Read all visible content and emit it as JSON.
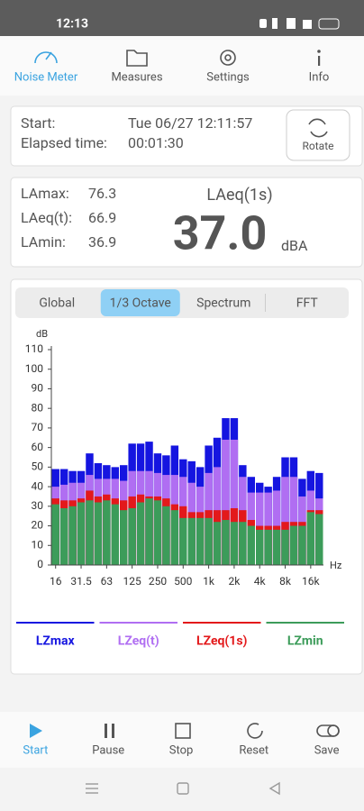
{
  "status_bar": {
    "time": "12:13"
  },
  "tabs": [
    {
      "label": "Noise Meter",
      "active": true
    },
    {
      "label": "Measures",
      "active": false
    },
    {
      "label": "Settings",
      "active": false
    },
    {
      "label": "Info",
      "active": false
    }
  ],
  "session": {
    "start_label": "Start:",
    "start_value": "Tue 06/27 12:11:57",
    "elapsed_label": "Elapsed time:",
    "elapsed_value": "00:01:30",
    "button": "Rotate"
  },
  "levels": {
    "rows": [
      {
        "label": "LAmax:",
        "value": "76.3"
      },
      {
        "label": "LAeq(t):",
        "value": "66.9"
      },
      {
        "label": "LAmin:",
        "value": "36.9"
      }
    ],
    "main_label": "LAeq(1s)",
    "main_value": "37.0",
    "unit": "dBA"
  },
  "view_tabs": [
    {
      "label": "Global",
      "active": false
    },
    {
      "label": "1/3 Octave",
      "active": true
    },
    {
      "label": "Spectrum",
      "active": false
    },
    {
      "label": "FFT",
      "active": false
    }
  ],
  "chart_data": {
    "type": "bar",
    "ylabel": "dB",
    "xlabel": "Hz",
    "categories": [
      "16",
      null,
      null,
      "31.5",
      null,
      null,
      "63",
      null,
      null,
      "125",
      null,
      null,
      "250",
      null,
      null,
      "500",
      null,
      null,
      "1k",
      null,
      null,
      "2k",
      null,
      null,
      "4k",
      null,
      null,
      "8k",
      null,
      null,
      "16k",
      null
    ],
    "series": [
      {
        "name": "LZmax",
        "color": "#1515e0",
        "values": [
          49,
          49,
          48,
          48,
          57,
          52,
          51,
          50,
          51,
          62,
          62,
          63,
          57,
          56,
          61,
          54,
          53,
          50,
          61,
          65,
          75,
          75,
          51,
          45,
          42,
          40,
          45,
          55,
          55,
          44,
          48,
          47
        ]
      },
      {
        "name": "LZeq(t)",
        "color": "#b06ef2",
        "values": [
          40,
          41,
          42,
          42,
          46,
          44,
          44,
          44,
          43,
          48,
          48,
          48,
          47,
          46,
          46,
          45,
          42,
          40,
          47,
          50,
          64,
          64,
          45,
          37,
          37,
          37,
          38,
          45,
          45,
          35,
          38,
          34
        ]
      },
      {
        "name": "LZeq(1s)",
        "color": "#e3191b",
        "values": [
          34,
          33,
          33,
          34,
          38,
          35,
          36,
          34,
          33,
          35,
          36,
          35,
          35,
          34,
          31,
          30,
          27,
          27,
          28,
          28,
          28,
          29,
          28,
          23,
          20,
          20,
          20,
          22,
          22,
          22,
          28,
          28
        ]
      },
      {
        "name": "LZmin",
        "color": "#3c9c5a",
        "values": [
          31,
          29,
          30,
          32,
          33,
          32,
          33,
          31,
          28,
          29,
          32,
          34,
          33,
          30,
          28,
          24,
          24,
          24,
          24,
          22,
          23,
          22,
          22,
          20,
          18,
          18,
          18,
          18,
          20,
          20,
          27,
          26
        ]
      }
    ],
    "ylim": [
      0,
      110
    ],
    "yticks": [
      0,
      10,
      20,
      30,
      40,
      50,
      60,
      70,
      80,
      90,
      100,
      110
    ],
    "grid": false
  },
  "toolbar": [
    {
      "label": "Start",
      "active": true
    },
    {
      "label": "Pause",
      "active": false
    },
    {
      "label": "Stop",
      "active": false
    },
    {
      "label": "Reset",
      "active": false
    },
    {
      "label": "Save",
      "active": false
    }
  ]
}
